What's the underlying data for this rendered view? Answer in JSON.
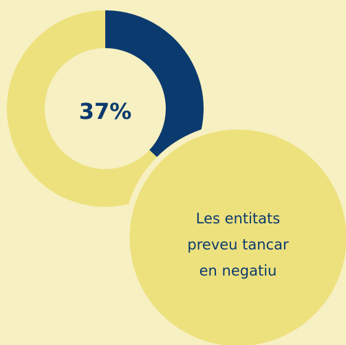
{
  "chart_data": {
    "type": "donut",
    "categories": [
      null,
      null
    ],
    "values": [
      37,
      63
    ],
    "value_labels": [
      "37%",
      null
    ],
    "colors": [
      "#0b3a6e",
      "#ede17e"
    ],
    "annotation": "Les entitats preveu tancar en negatiu"
  }
}
